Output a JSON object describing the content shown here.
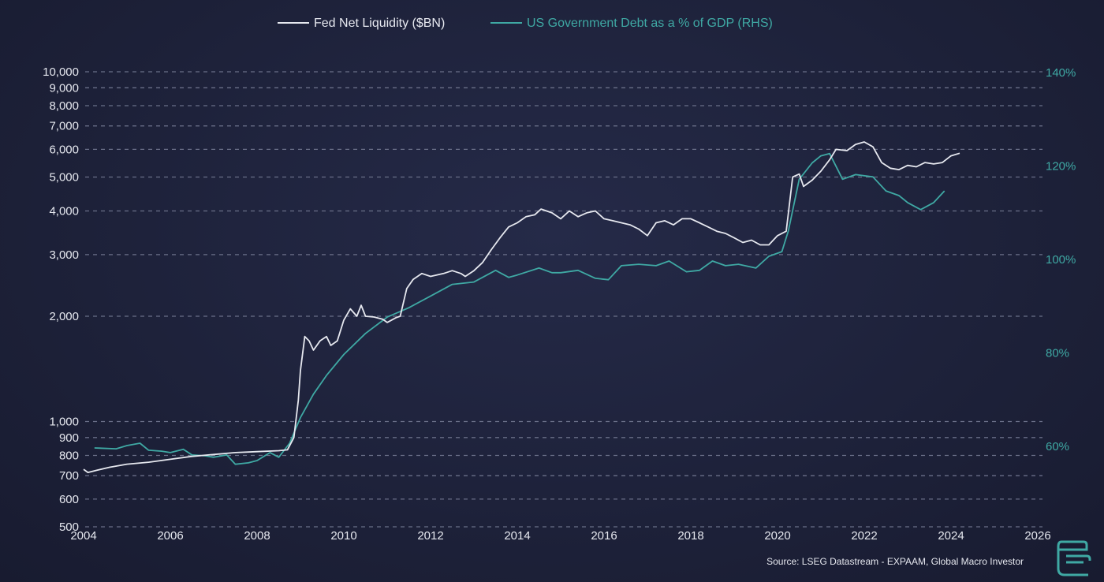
{
  "chart_data": {
    "type": "line",
    "legend": [
      {
        "label": "Fed Net Liquidity ($BN)",
        "color": "#e6e8ef"
      },
      {
        "label": "US Government Debt as a % of GDP (RHS)",
        "color": "#3fa9a4"
      }
    ],
    "x_range": [
      2004,
      2026
    ],
    "x_ticks": [
      "2004",
      "2006",
      "2008",
      "2010",
      "2012",
      "2014",
      "2016",
      "2018",
      "2020",
      "2022",
      "2024",
      "2026"
    ],
    "y_left": {
      "scale": "log",
      "range": [
        500,
        10000
      ],
      "ticks": [
        500,
        600,
        700,
        800,
        900,
        1000,
        2000,
        3000,
        4000,
        5000,
        6000,
        7000,
        8000,
        9000,
        10000
      ],
      "tick_labels": [
        "500",
        "600",
        "700",
        "800",
        "900",
        "1,000",
        "2,000",
        "3,000",
        "4,000",
        "5,000",
        "6,000",
        "7,000",
        "8,000",
        "9,000",
        "10,000"
      ]
    },
    "y_right": {
      "scale": "linear",
      "ticks": [
        60,
        80,
        100,
        120,
        140
      ],
      "tick_labels": [
        "60%",
        "80%",
        "100%",
        "120%",
        "140%"
      ]
    },
    "grid": true,
    "series": [
      {
        "name": "Fed Net Liquidity ($BN)",
        "axis": "left",
        "color": "#e6e8ef",
        "points": [
          [
            2004.0,
            730
          ],
          [
            2004.1,
            715
          ],
          [
            2004.3,
            725
          ],
          [
            2004.6,
            740
          ],
          [
            2005.0,
            755
          ],
          [
            2005.5,
            765
          ],
          [
            2006.0,
            780
          ],
          [
            2006.5,
            795
          ],
          [
            2007.0,
            805
          ],
          [
            2007.5,
            815
          ],
          [
            2008.0,
            820
          ],
          [
            2008.5,
            825
          ],
          [
            2008.7,
            830
          ],
          [
            2008.85,
            900
          ],
          [
            2008.95,
            1150
          ],
          [
            2009.0,
            1400
          ],
          [
            2009.1,
            1750
          ],
          [
            2009.2,
            1700
          ],
          [
            2009.3,
            1600
          ],
          [
            2009.45,
            1700
          ],
          [
            2009.6,
            1750
          ],
          [
            2009.7,
            1650
          ],
          [
            2009.85,
            1700
          ],
          [
            2010.0,
            1950
          ],
          [
            2010.15,
            2100
          ],
          [
            2010.3,
            2000
          ],
          [
            2010.4,
            2150
          ],
          [
            2010.5,
            2000
          ],
          [
            2010.7,
            1990
          ],
          [
            2010.9,
            1960
          ],
          [
            2011.0,
            1920
          ],
          [
            2011.2,
            1980
          ],
          [
            2011.3,
            2000
          ],
          [
            2011.45,
            2400
          ],
          [
            2011.6,
            2550
          ],
          [
            2011.8,
            2650
          ],
          [
            2012.0,
            2600
          ],
          [
            2012.3,
            2650
          ],
          [
            2012.5,
            2700
          ],
          [
            2012.7,
            2650
          ],
          [
            2012.8,
            2600
          ],
          [
            2013.0,
            2700
          ],
          [
            2013.2,
            2850
          ],
          [
            2013.4,
            3100
          ],
          [
            2013.6,
            3350
          ],
          [
            2013.8,
            3600
          ],
          [
            2014.0,
            3700
          ],
          [
            2014.2,
            3850
          ],
          [
            2014.4,
            3900
          ],
          [
            2014.55,
            4050
          ],
          [
            2014.8,
            3950
          ],
          [
            2015.0,
            3800
          ],
          [
            2015.2,
            4000
          ],
          [
            2015.4,
            3850
          ],
          [
            2015.6,
            3950
          ],
          [
            2015.8,
            4000
          ],
          [
            2016.0,
            3800
          ],
          [
            2016.2,
            3750
          ],
          [
            2016.4,
            3700
          ],
          [
            2016.6,
            3650
          ],
          [
            2016.8,
            3550
          ],
          [
            2017.0,
            3400
          ],
          [
            2017.2,
            3700
          ],
          [
            2017.4,
            3750
          ],
          [
            2017.6,
            3650
          ],
          [
            2017.8,
            3800
          ],
          [
            2018.0,
            3800
          ],
          [
            2018.2,
            3700
          ],
          [
            2018.4,
            3600
          ],
          [
            2018.6,
            3500
          ],
          [
            2018.8,
            3450
          ],
          [
            2019.0,
            3350
          ],
          [
            2019.2,
            3250
          ],
          [
            2019.4,
            3300
          ],
          [
            2019.6,
            3200
          ],
          [
            2019.8,
            3200
          ],
          [
            2020.0,
            3400
          ],
          [
            2020.2,
            3500
          ],
          [
            2020.35,
            5000
          ],
          [
            2020.5,
            5100
          ],
          [
            2020.6,
            4700
          ],
          [
            2020.8,
            4900
          ],
          [
            2021.0,
            5200
          ],
          [
            2021.2,
            5600
          ],
          [
            2021.35,
            6000
          ],
          [
            2021.6,
            5950
          ],
          [
            2021.8,
            6200
          ],
          [
            2022.0,
            6300
          ],
          [
            2022.2,
            6100
          ],
          [
            2022.4,
            5500
          ],
          [
            2022.6,
            5300
          ],
          [
            2022.8,
            5250
          ],
          [
            2023.0,
            5400
          ],
          [
            2023.2,
            5350
          ],
          [
            2023.4,
            5500
          ],
          [
            2023.6,
            5450
          ],
          [
            2023.8,
            5500
          ],
          [
            2024.0,
            5750
          ],
          [
            2024.2,
            5850
          ]
        ]
      },
      {
        "name": "US Government Debt as a % of GDP (RHS)",
        "axis": "right",
        "color": "#3fa9a4",
        "points": [
          [
            2004.25,
            59.5
          ],
          [
            2004.75,
            59.3
          ],
          [
            2005.0,
            60.0
          ],
          [
            2005.3,
            60.5
          ],
          [
            2005.5,
            59.0
          ],
          [
            2005.8,
            58.8
          ],
          [
            2006.0,
            58.5
          ],
          [
            2006.3,
            59.2
          ],
          [
            2006.5,
            58.0
          ],
          [
            2006.8,
            57.8
          ],
          [
            2007.0,
            57.5
          ],
          [
            2007.3,
            58.0
          ],
          [
            2007.5,
            56.0
          ],
          [
            2007.8,
            56.3
          ],
          [
            2008.0,
            56.8
          ],
          [
            2008.3,
            58.5
          ],
          [
            2008.5,
            57.5
          ],
          [
            2008.75,
            60.5
          ],
          [
            2009.0,
            66.0
          ],
          [
            2009.3,
            71.0
          ],
          [
            2009.6,
            75.0
          ],
          [
            2010.0,
            79.5
          ],
          [
            2010.5,
            84.0
          ],
          [
            2011.0,
            87.5
          ],
          [
            2011.5,
            89.5
          ],
          [
            2012.0,
            92.0
          ],
          [
            2012.5,
            94.5
          ],
          [
            2013.0,
            95.0
          ],
          [
            2013.5,
            97.5
          ],
          [
            2013.8,
            96.0
          ],
          [
            2014.0,
            96.5
          ],
          [
            2014.5,
            98.0
          ],
          [
            2014.8,
            97.0
          ],
          [
            2015.0,
            97.0
          ],
          [
            2015.4,
            97.5
          ],
          [
            2015.8,
            95.8
          ],
          [
            2016.1,
            95.5
          ],
          [
            2016.4,
            98.5
          ],
          [
            2016.8,
            98.8
          ],
          [
            2017.2,
            98.5
          ],
          [
            2017.5,
            99.5
          ],
          [
            2017.9,
            97.2
          ],
          [
            2018.2,
            97.5
          ],
          [
            2018.5,
            99.5
          ],
          [
            2018.8,
            98.5
          ],
          [
            2019.1,
            98.8
          ],
          [
            2019.5,
            98.0
          ],
          [
            2019.8,
            100.5
          ],
          [
            2020.1,
            101.5
          ],
          [
            2020.25,
            106.0
          ],
          [
            2020.5,
            117.0
          ],
          [
            2020.8,
            120.5
          ],
          [
            2021.0,
            122.0
          ],
          [
            2021.2,
            122.5
          ],
          [
            2021.5,
            117.0
          ],
          [
            2021.8,
            118.0
          ],
          [
            2022.2,
            117.5
          ],
          [
            2022.5,
            114.5
          ],
          [
            2022.8,
            113.5
          ],
          [
            2023.0,
            112.0
          ],
          [
            2023.3,
            110.5
          ],
          [
            2023.6,
            112.0
          ],
          [
            2023.85,
            114.5
          ]
        ]
      }
    ],
    "source": "Source: LSEG Datastream - EXPAAM, Global Macro Investor"
  }
}
